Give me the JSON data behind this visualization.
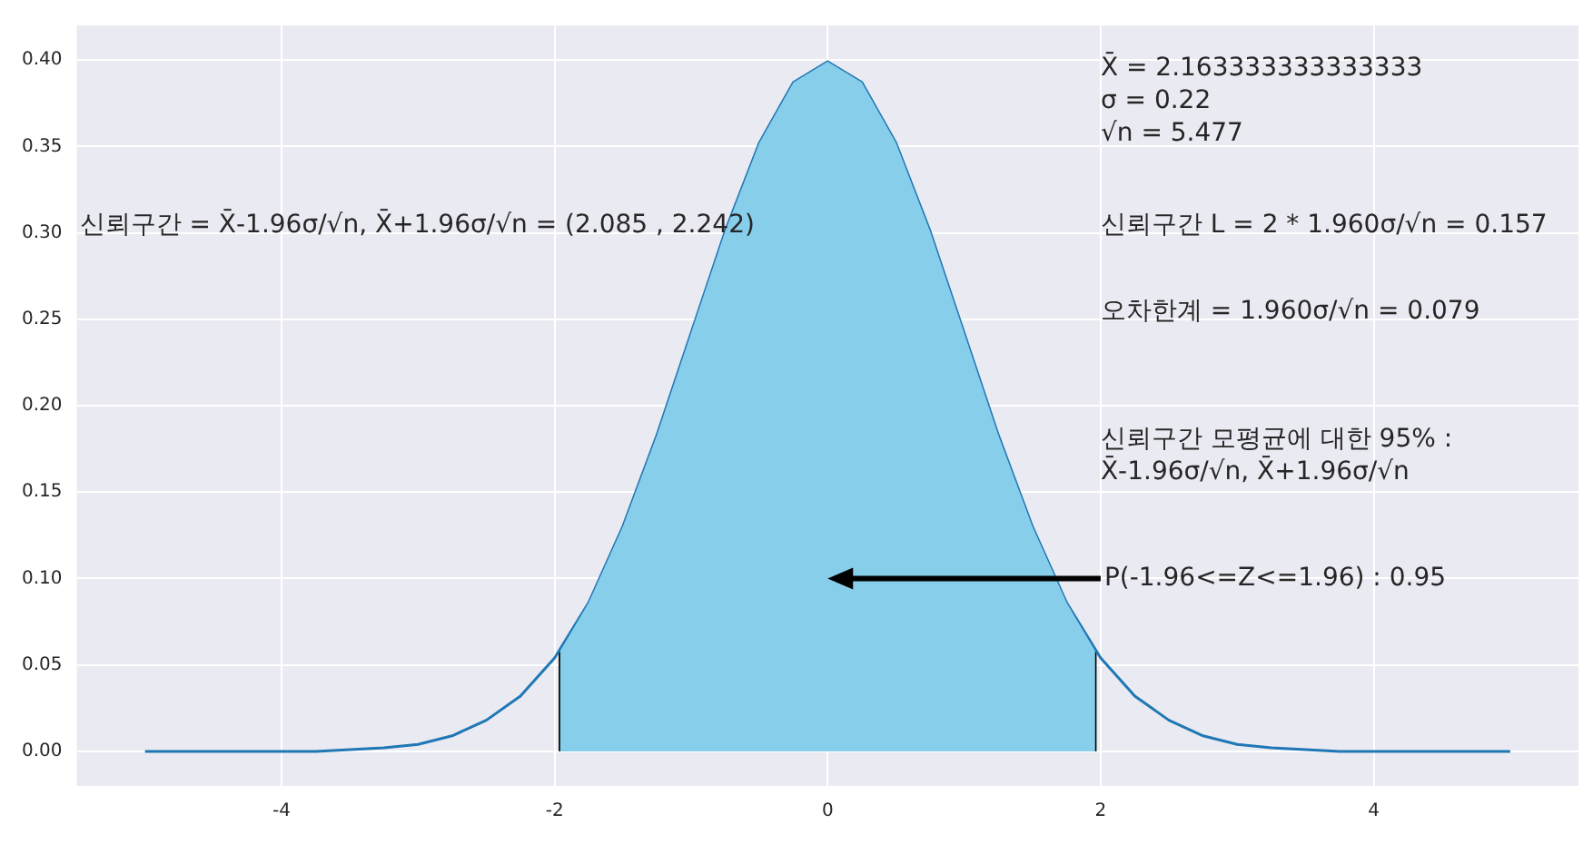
{
  "chart_data": {
    "type": "line",
    "marker": "none",
    "grid": true,
    "xlim": [
      -5.5,
      5.5
    ],
    "xticks": [
      -4,
      -2,
      0,
      2,
      4
    ],
    "ylim": [
      -0.02,
      0.42
    ],
    "yticks": [
      {
        "value": 0,
        "label": "0.00"
      },
      {
        "value": 0.05,
        "label": "0.05"
      },
      {
        "value": 0.1,
        "label": "0.10"
      },
      {
        "value": 0.15,
        "label": "0.15"
      },
      {
        "value": 0.2,
        "label": "0.20"
      },
      {
        "value": 0.25,
        "label": "0.25"
      },
      {
        "value": 0.3,
        "label": "0.30"
      },
      {
        "value": 0.35,
        "label": "0.35"
      },
      {
        "value": 0.4,
        "label": "0.40"
      }
    ],
    "series": [
      {
        "type": "area",
        "color": "#87ceeb",
        "x": [
          -1.96,
          -1.75,
          -1.5,
          -1.25,
          -1,
          -0.75,
          -0.5,
          -0.25,
          0,
          0.25,
          0.5,
          0.75,
          1,
          1.25,
          1.5,
          1.75,
          1.96
        ],
        "values": [
          0.058,
          0.086,
          0.13,
          0.183,
          0.242,
          0.301,
          0.352,
          0.387,
          0.399,
          0.387,
          0.352,
          0.301,
          0.242,
          0.183,
          0.13,
          0.086,
          0.058
        ]
      },
      {
        "color": "#1f77b4",
        "x": [
          -5,
          -4.75,
          -4.5,
          -4.25,
          -4,
          -3.75,
          -3.5,
          -3.25,
          -3,
          -2.75,
          -2.5,
          -2.25,
          -2,
          -1.75,
          -1.5,
          -1.25,
          -1,
          -0.75,
          -0.5,
          -0.25,
          0,
          0.25,
          0.5,
          0.75,
          1,
          1.25,
          1.5,
          1.75,
          2,
          2.25,
          2.5,
          2.75,
          3,
          3.25,
          3.5,
          3.75,
          4,
          4.25,
          4.5,
          4.75,
          5
        ],
        "values": [
          0,
          0,
          0,
          0,
          0,
          0,
          0.001,
          0.002,
          0.004,
          0.009,
          0.018,
          0.032,
          0.054,
          0.086,
          0.13,
          0.183,
          0.242,
          0.301,
          0.352,
          0.387,
          0.399,
          0.387,
          0.352,
          0.301,
          0.242,
          0.183,
          0.13,
          0.086,
          0.054,
          0.032,
          0.018,
          0.009,
          0.004,
          0.002,
          0.001,
          0,
          0,
          0,
          0,
          0,
          0
        ]
      },
      {
        "color": "#000000",
        "x": [
          -1.96,
          -1.96
        ],
        "values": [
          0,
          0.058
        ]
      },
      {
        "color": "#000000",
        "x": [
          1.96,
          1.96
        ],
        "values": [
          0,
          0.058
        ]
      }
    ],
    "annotations": [
      "X̄ = 2.163333333333333\nσ = 0.22\n√n = 5.477",
      "신뢰구간 = X̄-1.96σ/√n, X̄+1.96σ/√n = (2.085 , 2.242)",
      "신뢰구간 L = 2 * 1.960σ/√n = 0.157",
      "오차한계 = 1.960σ/√n = 0.079",
      "신뢰구간 모평균에 대한 95% :\nX̄-1.96σ/√n, X̄+1.96σ/√n",
      "P(-1.96<=Z<=1.96) : 0.95"
    ]
  }
}
